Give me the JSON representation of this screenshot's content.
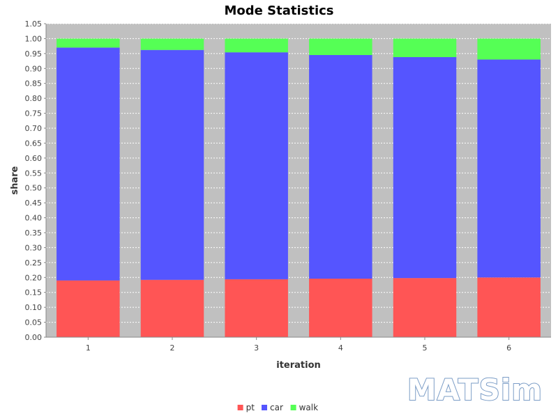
{
  "chart_data": {
    "type": "bar",
    "stacked": true,
    "title": "Mode Statistics",
    "xlabel": "iteration",
    "ylabel": "share",
    "categories": [
      "1",
      "2",
      "3",
      "4",
      "5",
      "6"
    ],
    "series": [
      {
        "name": "pt",
        "color": "#ff5555",
        "values": [
          0.19,
          0.192,
          0.194,
          0.196,
          0.198,
          0.2
        ]
      },
      {
        "name": "car",
        "color": "#5555ff",
        "values": [
          0.78,
          0.77,
          0.76,
          0.749,
          0.74,
          0.73
        ]
      },
      {
        "name": "walk",
        "color": "#55ff55",
        "values": [
          0.03,
          0.038,
          0.046,
          0.055,
          0.062,
          0.07
        ]
      }
    ],
    "ylim": [
      0,
      1.05
    ],
    "yticks": [
      "0.00",
      "0.05",
      "0.10",
      "0.15",
      "0.20",
      "0.25",
      "0.30",
      "0.35",
      "0.40",
      "0.45",
      "0.50",
      "0.55",
      "0.60",
      "0.65",
      "0.70",
      "0.75",
      "0.80",
      "0.85",
      "0.90",
      "0.95",
      "1.00",
      "1.05"
    ],
    "grid": true,
    "legend_position": "bottom-center",
    "plot_background": "#c0c0c0"
  },
  "logo": {
    "text": "MATSim"
  }
}
